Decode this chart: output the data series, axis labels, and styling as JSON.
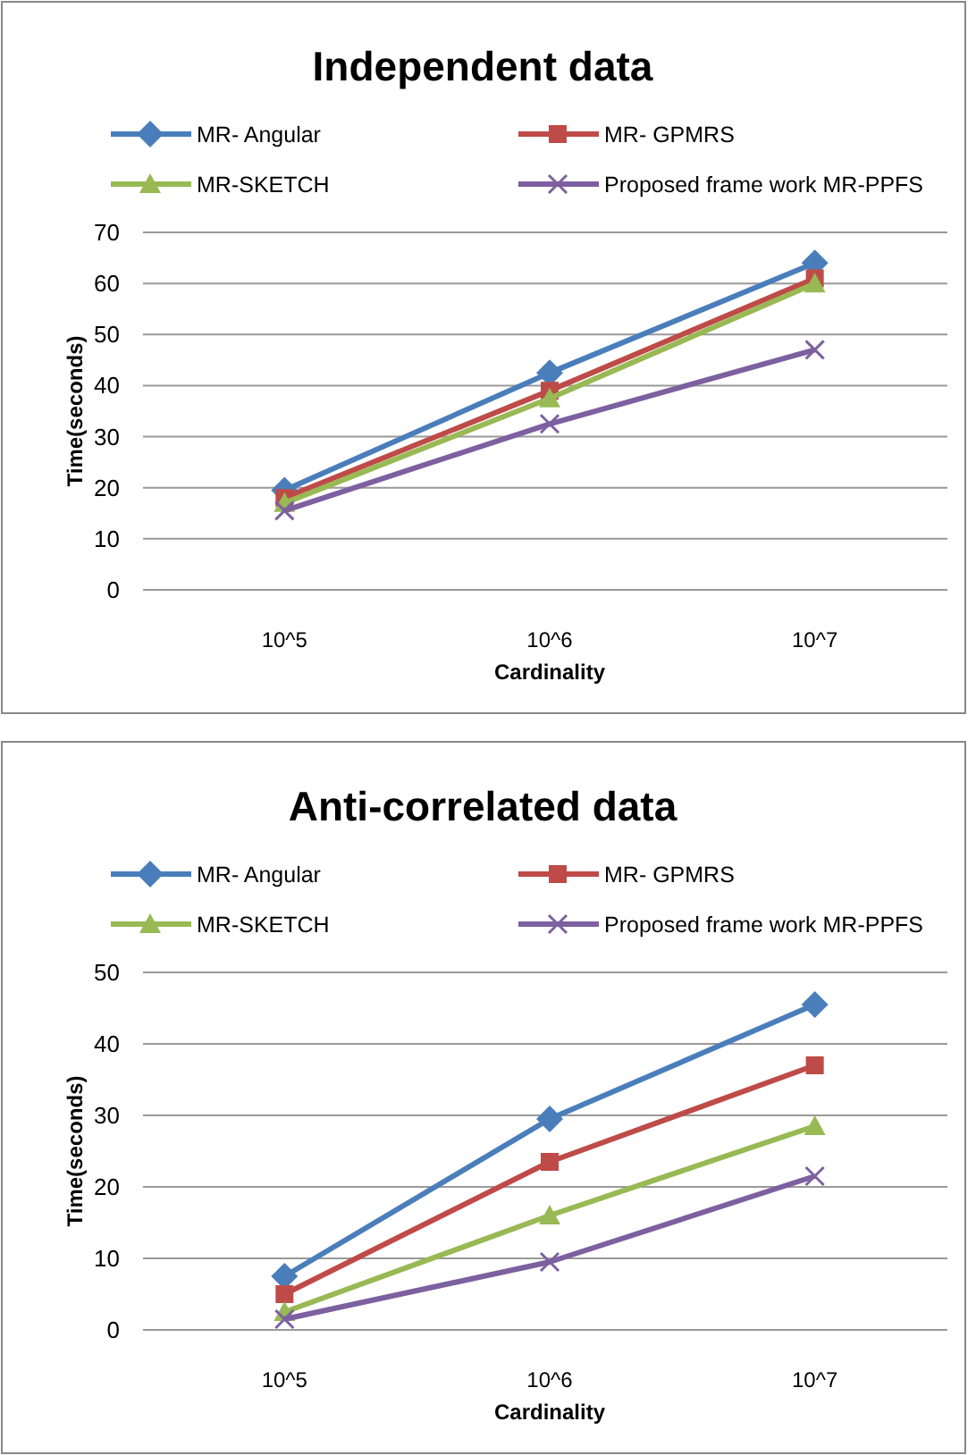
{
  "chart_data": [
    {
      "type": "line",
      "title": "Independent data",
      "xlabel": "Cardinality",
      "ylabel": "Time(seconds)",
      "categories": [
        "10^5",
        "10^6",
        "10^7"
      ],
      "ylim": [
        0,
        70
      ],
      "yticks": [
        0,
        10,
        20,
        30,
        40,
        50,
        60,
        70
      ],
      "grid": "y",
      "legend": "top",
      "series": [
        {
          "name": "MR- Angular",
          "color": "#4a7ebb",
          "marker": "diamond",
          "values": [
            19.5,
            42.5,
            64
          ]
        },
        {
          "name": "MR- GPMRS",
          "color": "#be4b48",
          "marker": "square",
          "values": [
            18,
            39,
            61
          ]
        },
        {
          "name": "MR-SKETCH",
          "color": "#98b954",
          "marker": "triangle",
          "values": [
            17,
            37.5,
            60
          ]
        },
        {
          "name": "Proposed frame work MR-PPFS",
          "color": "#7d60a0",
          "marker": "cross",
          "values": [
            15.5,
            32.5,
            47
          ]
        }
      ]
    },
    {
      "type": "line",
      "title": "Anti-correlated data",
      "xlabel": "Cardinality",
      "ylabel": "Time(seconds)",
      "categories": [
        "10^5",
        "10^6",
        "10^7"
      ],
      "ylim": [
        0,
        50
      ],
      "yticks": [
        0,
        10,
        20,
        30,
        40,
        50
      ],
      "grid": "y",
      "legend": "top",
      "series": [
        {
          "name": "MR- Angular",
          "color": "#4a7ebb",
          "marker": "diamond",
          "values": [
            7.5,
            29.5,
            45.5
          ]
        },
        {
          "name": "MR- GPMRS",
          "color": "#be4b48",
          "marker": "square",
          "values": [
            5,
            23.5,
            37
          ]
        },
        {
          "name": "MR-SKETCH",
          "color": "#98b954",
          "marker": "triangle",
          "values": [
            2.5,
            16,
            28.5
          ]
        },
        {
          "name": "Proposed frame work MR-PPFS",
          "color": "#7d60a0",
          "marker": "cross",
          "values": [
            1.5,
            9.5,
            21.5
          ]
        }
      ]
    }
  ]
}
